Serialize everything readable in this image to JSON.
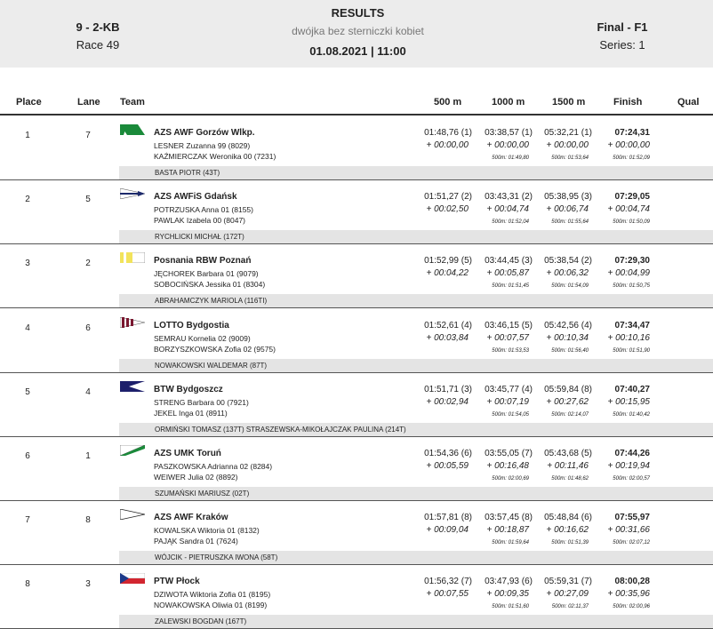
{
  "header": {
    "category": "9 - 2-KB",
    "race": "Race 49",
    "title": "RESULTS",
    "boat_class": "dwójka bez sterniczki kobiet",
    "date_time": "01.08.2021 | 11:00",
    "final": "Final - F1",
    "series": "Series: 1"
  },
  "columns": {
    "place": "Place",
    "lane": "Lane",
    "team": "Team",
    "m500": "500 m",
    "m1000": "1000 m",
    "m1500": "1500 m",
    "finish": "Finish",
    "qual": "Qual"
  },
  "rows": [
    {
      "place": "1",
      "lane": "7",
      "team": "AZS AWF Gorzów Wlkp.",
      "athlete1": "LESNER  Zuzanna 99 (8029)",
      "athlete2": "KAŹMIERCZAK  Weronika 00 (7231)",
      "coach": "BASTA PIOTR (43T)",
      "t500": "01:48,76 (1)",
      "d500": "+ 00:00,00",
      "t1000": "03:38,57 (1)",
      "d1000": "+ 00:00,00",
      "s1000": "500m: 01:49,80",
      "t1500": "05:32,21 (1)",
      "d1500": "+ 00:00,00",
      "s1500": "500m: 01:53,64",
      "tfin": "07:24,31",
      "dfin": "+ 00:00,00",
      "sfin": "500m: 01:52,09",
      "flag": "green-diagonal"
    },
    {
      "place": "2",
      "lane": "5",
      "team": "AZS AWFiS Gdańsk",
      "athlete1": "POTRZUSKA  Anna 01 (8155)",
      "athlete2": "PAWLAK  Izabela 00 (8047)",
      "coach": "RYCHLICKI MICHAŁ (172T)",
      "t500": "01:51,27 (2)",
      "d500": "+ 00:02,50",
      "t1000": "03:43,31 (2)",
      "d1000": "+ 00:04,74",
      "s1000": "500m: 01:52,04",
      "t1500": "05:38,95 (3)",
      "d1500": "+ 00:06,74",
      "s1500": "500m: 01:55,64",
      "tfin": "07:29,05",
      "dfin": "+ 00:04,74",
      "sfin": "500m: 01:50,09",
      "flag": "white-navy"
    },
    {
      "place": "3",
      "lane": "2",
      "team": "Posnania RBW Poznań",
      "athlete1": "JĘCHOREK  Barbara 01 (9079)",
      "athlete2": "SOBOCIŃSKA  Jessika 01 (8304)",
      "coach": "ABRAHAMCZYK MARIOLA (116TI)",
      "t500": "01:52,99 (5)",
      "d500": "+ 00:04,22",
      "t1000": "03:44,45 (3)",
      "d1000": "+ 00:05,87",
      "s1000": "500m: 01:51,45",
      "t1500": "05:38,54 (2)",
      "d1500": "+ 00:06,32",
      "s1500": "500m: 01:54,09",
      "tfin": "07:29,30",
      "dfin": "+ 00:04,99",
      "sfin": "500m: 01:50,75",
      "flag": "yellow-white"
    },
    {
      "place": "4",
      "lane": "6",
      "team": "LOTTO Bydgostia",
      "athlete1": "SEMRAU  Kornelia 02 (9009)",
      "athlete2": "BORZYSZKOWSKA  Zofia 02 (9575)",
      "coach": "NOWAKOWSKI WALDEMAR (87T)",
      "t500": "01:52,61 (4)",
      "d500": "+ 00:03,84",
      "t1000": "03:46,15 (5)",
      "d1000": "+ 00:07,57",
      "s1000": "500m: 01:53,53",
      "t1500": "05:42,56 (4)",
      "d1500": "+ 00:10,34",
      "s1500": "500m: 01:56,40",
      "tfin": "07:34,47",
      "dfin": "+ 00:10,16",
      "sfin": "500m: 01:51,90",
      "flag": "maroon-stripes"
    },
    {
      "place": "5",
      "lane": "4",
      "team": "BTW Bydgoszcz",
      "athlete1": "STRENG  Barbara 00 (7921)",
      "athlete2": "JEKEL  Inga 01 (8911)",
      "coach": "ORMIŃSKI TOMASZ (137T) STRASZEWSKA-MIKOŁAJCZAK PAULINA (214T)",
      "t500": "01:51,71 (3)",
      "d500": "+ 00:02,94",
      "t1000": "03:45,77 (4)",
      "d1000": "+ 00:07,19",
      "s1000": "500m: 01:54,05",
      "t1500": "05:59,84 (8)",
      "d1500": "+ 00:27,62",
      "s1500": "500m: 02:14,07",
      "tfin": "07:40,27",
      "dfin": "+ 00:15,95",
      "sfin": "500m: 01:40,42",
      "flag": "navy-white"
    },
    {
      "place": "6",
      "lane": "1",
      "team": "AZS UMK Toruń",
      "athlete1": "PASZKOWSKA  Adrianna 02 (8284)",
      "athlete2": "WEIWER  Julia 02 (8892)",
      "coach": "SZUMAŃSKI MARIUSZ (02T)",
      "t500": "01:54,36 (6)",
      "d500": "+ 00:05,59",
      "t1000": "03:55,05 (7)",
      "d1000": "+ 00:16,48",
      "s1000": "500m: 02:00,69",
      "t1500": "05:43,68 (5)",
      "d1500": "+ 00:11,46",
      "s1500": "500m: 01:48,62",
      "tfin": "07:44,26",
      "dfin": "+ 00:19,94",
      "sfin": "500m: 02:00,57",
      "flag": "white-green"
    },
    {
      "place": "7",
      "lane": "8",
      "team": "AZS AWF Kraków",
      "athlete1": "KOWALSKA  Wiktoria 01 (8132)",
      "athlete2": "PAJĄK  Sandra 01 (7624)",
      "coach": "WÓJCIK - PIETRUSZKA IWONA (58T)",
      "t500": "01:57,81 (8)",
      "d500": "+ 00:09,04",
      "t1000": "03:57,45 (8)",
      "d1000": "+ 00:18,87",
      "s1000": "500m: 01:59,64",
      "t1500": "05:48,84 (6)",
      "d1500": "+ 00:16,62",
      "s1500": "500m: 01:51,39",
      "tfin": "07:55,97",
      "dfin": "+ 00:31,66",
      "sfin": "500m: 02:07,12",
      "flag": "white-black"
    },
    {
      "place": "8",
      "lane": "3",
      "team": "PTW Płock",
      "athlete1": "DZIWOTA  Wiktoria Zofia 01 (8195)",
      "athlete2": "NOWAKOWSKA  Oliwia 01 (8199)",
      "coach": "ZALEWSKI BOGDAN (167T)",
      "t500": "01:56,32 (7)",
      "d500": "+ 00:07,55",
      "t1000": "03:47,93 (6)",
      "d1000": "+ 00:09,35",
      "s1000": "500m: 01:51,60",
      "t1500": "05:59,31 (7)",
      "d1500": "+ 00:27,09",
      "s1500": "500m: 02:11,37",
      "tfin": "08:00,28",
      "dfin": "+ 00:35,96",
      "sfin": "500m: 02:00,96",
      "flag": "red-white-blue"
    }
  ]
}
